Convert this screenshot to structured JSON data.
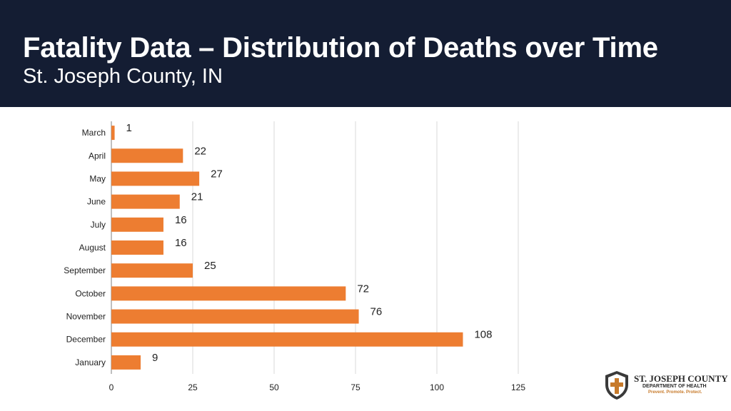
{
  "header": {
    "title": "Fatality Data – Distribution of Deaths over Time",
    "subtitle": "St. Joseph County, IN"
  },
  "chart_data": {
    "type": "bar",
    "orientation": "horizontal",
    "categories": [
      "March",
      "April",
      "May",
      "June",
      "July",
      "August",
      "September",
      "October",
      "November",
      "December",
      "January"
    ],
    "values": [
      1,
      22,
      27,
      21,
      16,
      16,
      25,
      72,
      76,
      108,
      9
    ],
    "xlim": [
      0,
      125
    ],
    "xticks": [
      0,
      25,
      50,
      75,
      100,
      125
    ],
    "grid": "vertical",
    "bar_color": "#ed7d31",
    "data_labels": true
  },
  "logo": {
    "line1": "ST. JOSEPH COUNTY",
    "line2": "DEPARTMENT OF HEALTH",
    "line3": "Prevent. Promote. Protect.",
    "icon": "shield-cross-icon",
    "accent": "#c77a2a"
  }
}
